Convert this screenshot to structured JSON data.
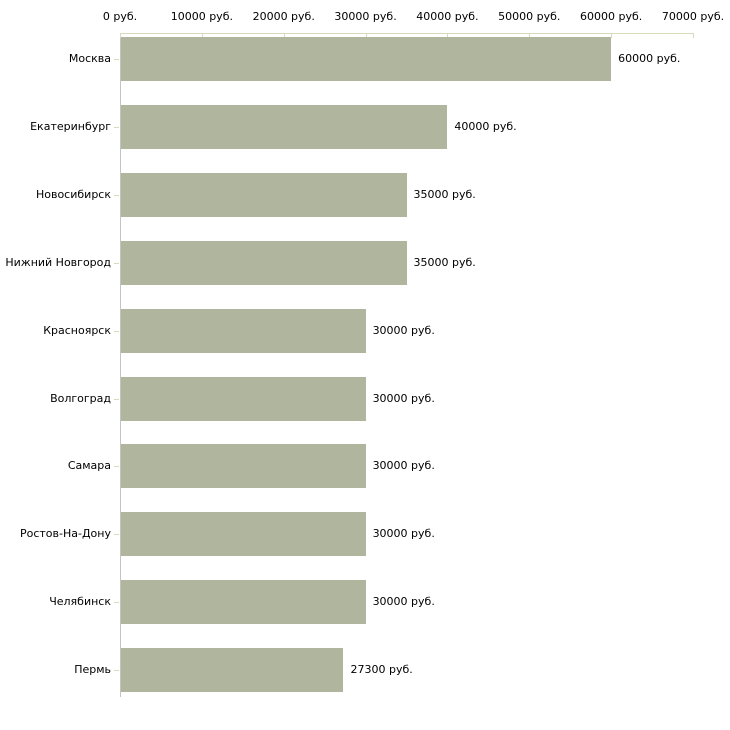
{
  "chart": {
    "bar_color": "#b0b69d",
    "top_axis_color": "#d8dabc",
    "tick_color": "#d8dabc",
    "left_axis_color": "#c3c3c3",
    "text_color": "#000000",
    "background": "#ffffff"
  },
  "chart_data": {
    "type": "bar",
    "orientation": "horizontal",
    "title": "",
    "xlabel": "",
    "ylabel": "",
    "unit": "руб.",
    "xlim": [
      0,
      70000
    ],
    "grid": false,
    "legend": false,
    "categories": [
      "Москва",
      "Екатеринбург",
      "Новосибирск",
      "Нижний Новгород",
      "Красноярск",
      "Волгоград",
      "Самара",
      "Ростов-На-Дону",
      "Челябинск",
      "Пермь"
    ],
    "values": [
      60000,
      40000,
      35000,
      35000,
      30000,
      30000,
      30000,
      30000,
      30000,
      27300
    ],
    "value_labels": [
      "60000 руб.",
      "40000 руб.",
      "35000 руб.",
      "35000 руб.",
      "30000 руб.",
      "30000 руб.",
      "30000 руб.",
      "30000 руб.",
      "30000 руб.",
      "27300 руб."
    ],
    "x_ticks": [
      0,
      10000,
      20000,
      30000,
      40000,
      50000,
      60000,
      70000
    ],
    "x_tick_labels": [
      "0 руб.",
      "10000 руб.",
      "20000 руб.",
      "30000 руб.",
      "40000 руб.",
      "50000 руб.",
      "60000 руб.",
      "70000 руб."
    ]
  }
}
